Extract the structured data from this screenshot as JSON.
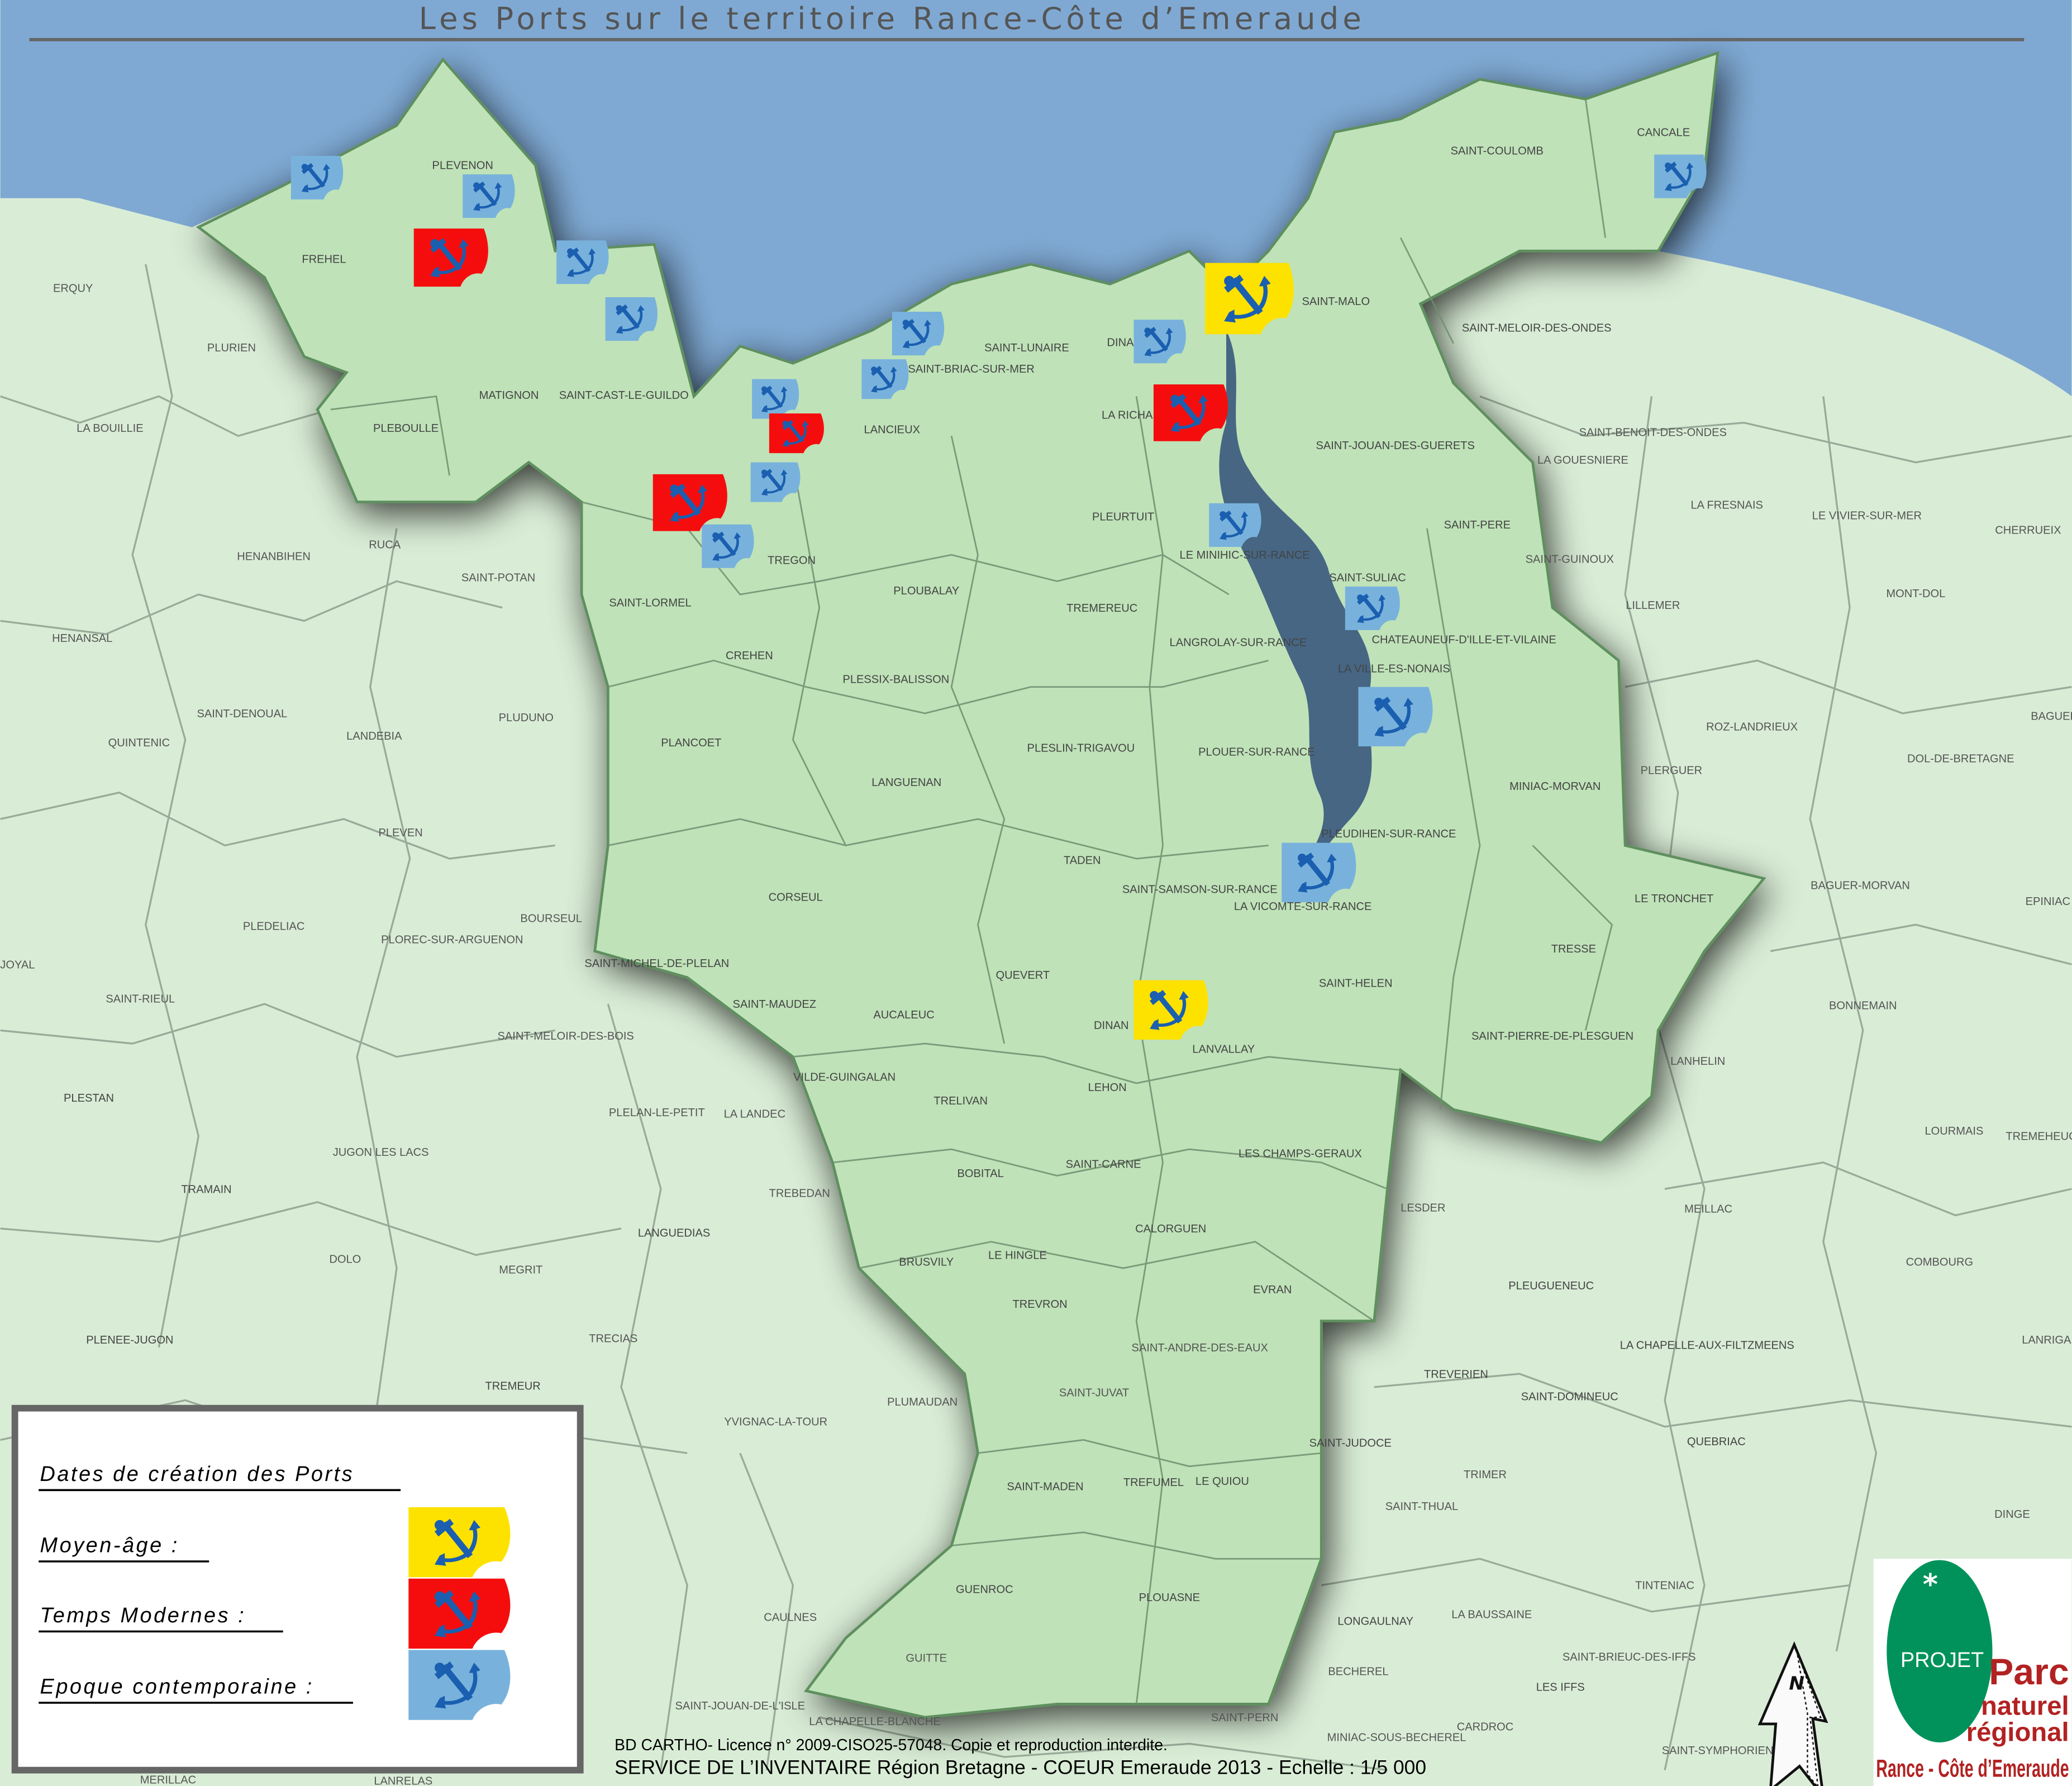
{
  "title": "Les Ports sur le territoire Rance-Côte d’Emeraude",
  "colors": {
    "sea": "#7fa9d3",
    "land_outside": "#d9edd6",
    "territory": "#bfe2b8",
    "estuary": "#3f5f80",
    "anchor": "#1a5fb0",
    "moyen_age": "#fde200",
    "temps_modernes": "#f50d0d",
    "epoque_contemporaine": "#78b2dc"
  },
  "legend": {
    "heading": "Dates de création des Ports",
    "items": [
      {
        "key": "moyen_age",
        "label": "Moyen-âge  :"
      },
      {
        "key": "temps_modernes",
        "label": "Temps  Modernes :"
      },
      {
        "key": "epoque_contemporaine",
        "label": "Epoque contemporaine :"
      }
    ]
  },
  "ports": [
    {
      "period": "epoque_contemporaine"
    },
    {
      "period": "epoque_contemporaine"
    },
    {
      "period": "epoque_contemporaine"
    },
    {
      "period": "epoque_contemporaine"
    },
    {
      "period": "epoque_contemporaine"
    },
    {
      "period": "epoque_contemporaine"
    },
    {
      "period": "epoque_contemporaine"
    },
    {
      "period": "epoque_contemporaine"
    },
    {
      "period": "epoque_contemporaine"
    },
    {
      "period": "epoque_contemporaine"
    },
    {
      "period": "epoque_contemporaine"
    },
    {
      "period": "epoque_contemporaine"
    },
    {
      "period": "epoque_contemporaine"
    },
    {
      "period": "epoque_contemporaine"
    },
    {
      "period": "epoque_contemporaine"
    },
    {
      "period": "temps_modernes"
    },
    {
      "period": "temps_modernes"
    },
    {
      "period": "temps_modernes"
    },
    {
      "period": "temps_modernes"
    },
    {
      "period": "moyen_age"
    },
    {
      "period": "moyen_age"
    }
  ],
  "towns": [
    "PLEVENON",
    "FREHEL",
    "ERQUY",
    "PLURIEN",
    "LA BOUILLIE",
    "MATIGNON",
    "SAINT-CAST-LE-GUILDO",
    "PLEBOULLE",
    "HENANBIHEN",
    "RUCA",
    "SAINT-POTAN",
    "HENANSAL",
    "SAINT-LORMEL",
    "CREHEN",
    "TREGON",
    "LANCIEUX",
    "SAINT-BRIAC-SUR-MER",
    "SAINT-LUNAIRE",
    "DINARD",
    "LA RICHARDAIS",
    "SAINT-MALO",
    "SAINT-COULOMB",
    "CANCALE",
    "SAINT-MELOIR-DES-ONDES",
    "SAINT-BENOIT-DES-ONDES",
    "LA GOUESNIERE",
    "SAINT-JOUAN-DES-GUERETS",
    "PLEURTUIT",
    "PLOUBALAY",
    "LE MINIHIC-SUR-RANCE",
    "SAINT-SULIAC",
    "SAINT-PERE",
    "SAINT-GUINOUX",
    "LA FRESNAIS",
    "LE VIVIER-SUR-MER",
    "CHERRUEIX",
    "MONT-DOL",
    "LILLEMER",
    "TREMEREUC",
    "LANGROLAY-SUR-RANCE",
    "CHATEAUNEUF-D'ILLE-ET-VILAINE",
    "LA VILLE-ES-NONAIS",
    "PLESSIX-BALISSON",
    "SAINT-DENOUAL",
    "QUINTENIC",
    "LANDEBIA",
    "PLUDUNO",
    "PLANCOET",
    "LANGUENAN",
    "PLESLIN-TRIGAVOU",
    "PLOUER-SUR-RANCE",
    "MINIAC-MORVAN",
    "ROZ-LANDRIEUX",
    "PLERGUER",
    "DOL-DE-BRETAGNE",
    "PLEUDIHEN-SUR-RANCE",
    "TADEN",
    "SAINT-SAMSON-SUR-RANCE",
    "LA VICOMTE-SUR-RANCE",
    "LE TRONCHET",
    "BAGUER-MORVAN",
    "EPINIAC",
    "PLEVEN",
    "CORSEUL",
    "BOURSEUL",
    "PLEDELIAC",
    "PLOREC-SUR-ARGUENON",
    "SAINT-MICHEL-DE-PLELAN",
    "QUEVERT",
    "TRESSE",
    "SAINT-HELEN",
    "SAINT-RIEUL",
    "SAINT-MAUDEZ",
    "AUCALEUC",
    "DINAN",
    "LANVALLAY",
    "SAINT-PIERRE-DE-PLESGUEN",
    "BONNEMAIN",
    "SAINT-MELOIR-DES-BOIS",
    "LANHELIN",
    "PLESTAN",
    "VILDE-GUINGALAN",
    "LEHON",
    "TRELIVAN",
    "PLELAN-LE-PETIT",
    "LA LANDEC",
    "LOURMAIS",
    "JUGON LES LACS",
    "SAINT-CARNE",
    "LES CHAMPS-GERAUX",
    "BOBITAL",
    "TREBEDAN",
    "TRAMAIN",
    "LESDER",
    "MEILLAC",
    "CALORGUEN",
    "LANGUEDIAS",
    "BRUSVILY",
    "LE HINGLE",
    "DOLO",
    "MEGRIT",
    "EVRAN",
    "TREVRON",
    "PLEUGUENEUC",
    "COMBOURG",
    "PLENEE-JUGON",
    "TRECIAS",
    "SAINT-ANDRE-DES-EAUX",
    "LA CHAPELLE-AUX-FILTZMEENS",
    "TREMEUR",
    "PLUMAUDAN",
    "SAINT-JUVAT",
    "TREVERIEN",
    "SAINT-DOMINEUC",
    "YVIGNAC-LA-TOUR",
    "SAINT-JUDOCE",
    "QUEBRIAC",
    "TRIMER",
    "SAINT-MADEN",
    "TREFUMEL",
    "LE QUIOU",
    "SAINT-THUAL",
    "DINGE",
    "TINTENIAC",
    "GUENROC",
    "CAULNES",
    "PLOUASNE",
    "LA BAUSSAINE",
    "LONGAULNAY",
    "SAINT-BRIEUC-DES-IFFS",
    "GUITTE",
    "LES IFFS",
    "BECHEREL",
    "SAINT-PERN",
    "MINIAC-SOUS-BECHEREL",
    "CARDROC",
    "SAINT-JOUAN-DE-L'ISLE",
    "LA CHAPELLE-BLANCHE",
    "SAINT-SYMPHORIEN",
    "MERILLAC",
    "LANRELAS",
    "JOYAL",
    "TREMEHEUC",
    "BAGUER",
    "LANRIGAN"
  ],
  "credits": {
    "line1": "BD CARTHO- Licence n° 2009-CISO25-57048. Copie et reproduction interdite.",
    "line2": "SERVICE DE L’INVENTAIRE Région Bretagne - COEUR Emeraude 2013  -  Echelle : 1/5 000"
  },
  "north_arrow": {
    "label": "N"
  },
  "logo": {
    "badge": "PROJET",
    "line1": "Parc",
    "line2": "naturel",
    "line3": "régional",
    "line4": "Rance - Côte d’Emeraude",
    "green": "#00925a",
    "red": "#b22222"
  }
}
